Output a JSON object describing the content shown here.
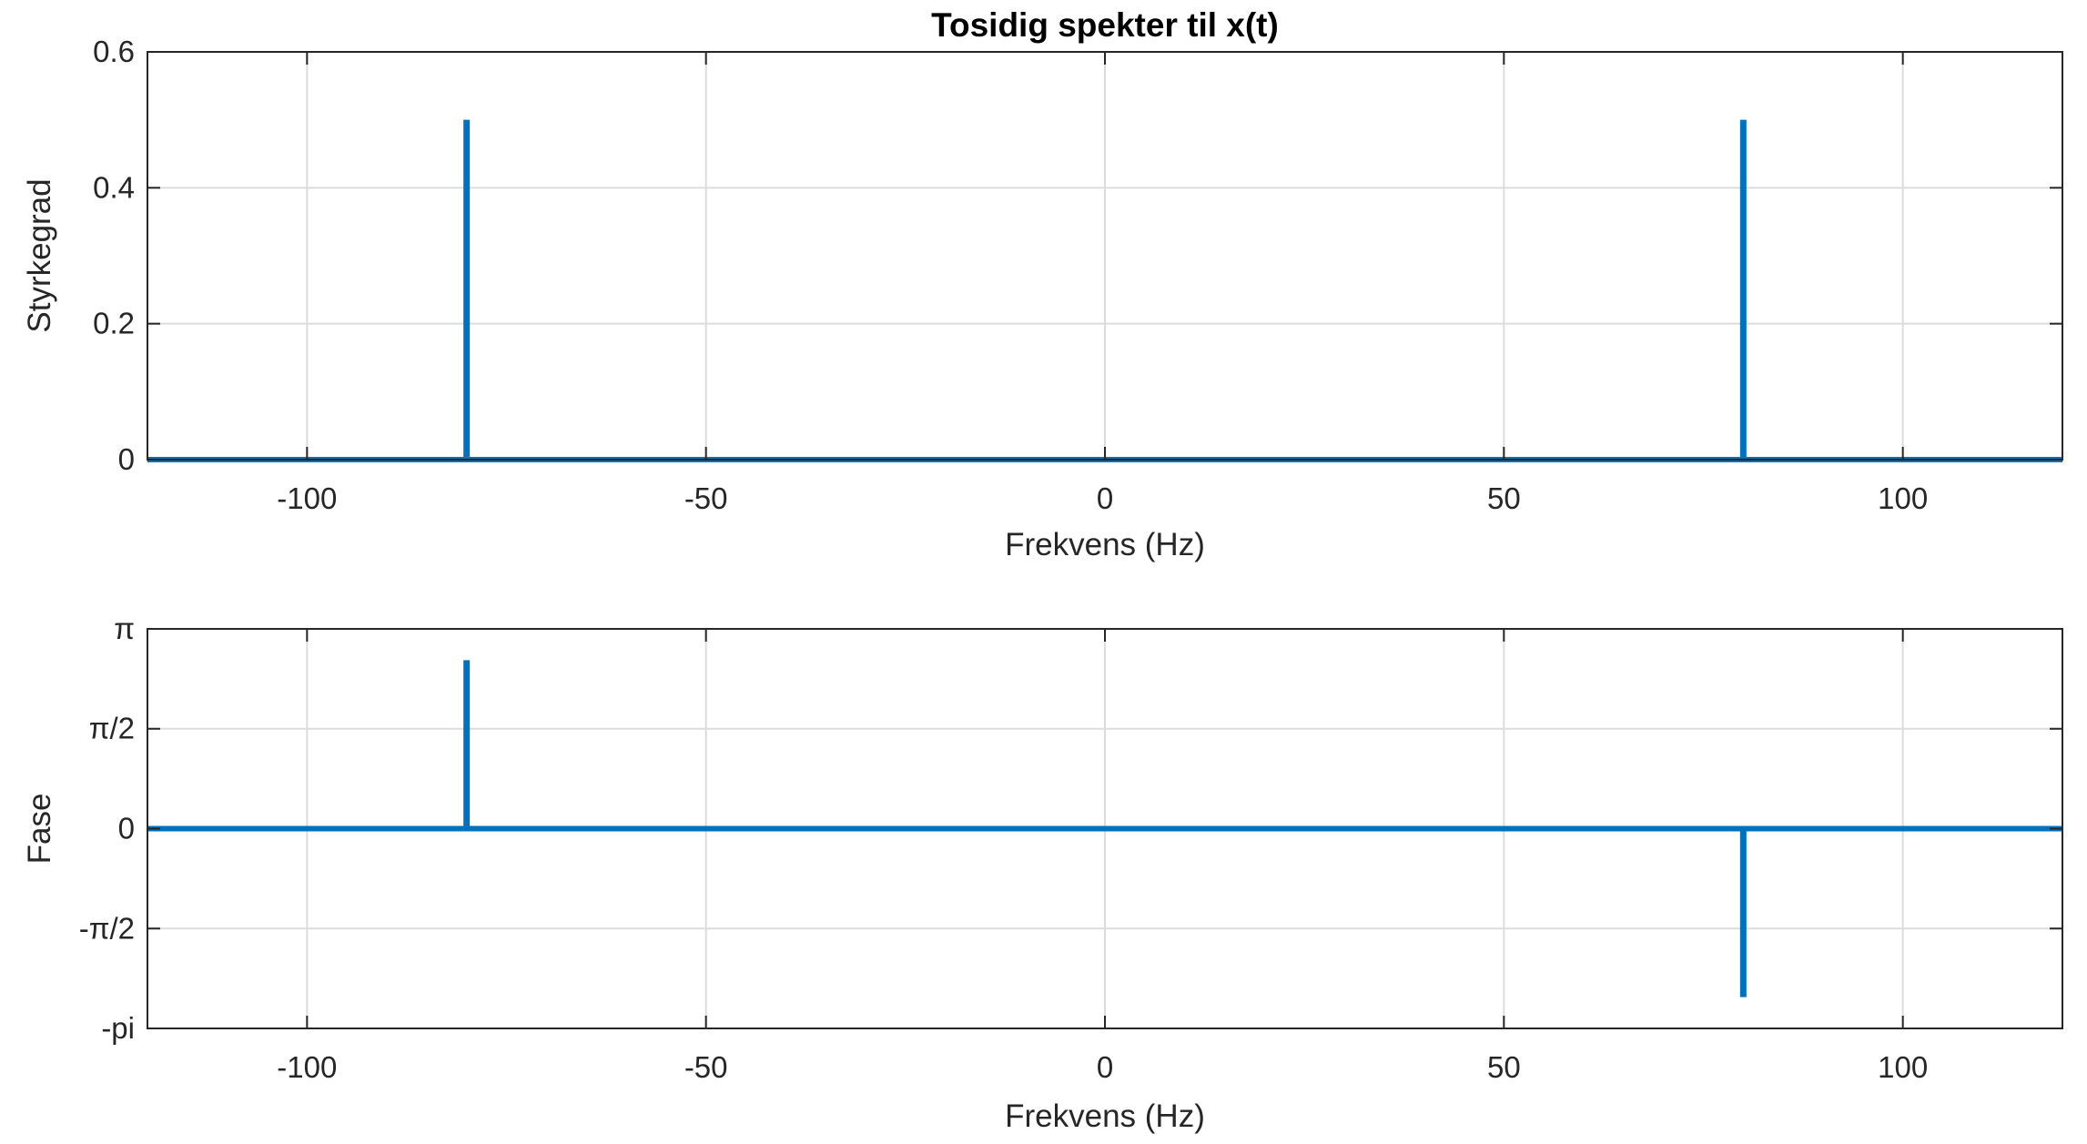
{
  "chart_data": [
    {
      "type": "stem",
      "title": "Tosidig spekter til x(t)",
      "xlabel": "Frekvens (Hz)",
      "ylabel": "Styrkegrad",
      "xlim": [
        -120,
        120
      ],
      "ylim": [
        0,
        0.6
      ],
      "xticks": [
        -100,
        -50,
        0,
        50,
        100
      ],
      "xtick_labels": [
        "-100",
        "-50",
        "0",
        "50",
        "100"
      ],
      "yticks": [
        0,
        0.2,
        0.4,
        0.6
      ],
      "ytick_labels": [
        "0",
        "0.2",
        "0.4",
        "0.6"
      ],
      "grid": true,
      "baseline": 0,
      "series": [
        {
          "x": [
            -80,
            80
          ],
          "y": [
            0.5,
            0.5
          ],
          "color": "#0072BD"
        }
      ]
    },
    {
      "type": "stem",
      "title": "",
      "xlabel": "Frekvens (Hz)",
      "ylabel": "Fase",
      "xlim": [
        -120,
        120
      ],
      "ylim": [
        -3.14159,
        3.14159
      ],
      "xticks": [
        -100,
        -50,
        0,
        50,
        100
      ],
      "xtick_labels": [
        "-100",
        "-50",
        "0",
        "50",
        "100"
      ],
      "yticks": [
        -3.14159,
        -1.5708,
        0,
        1.5708,
        3.14159
      ],
      "ytick_labels": [
        "-pi",
        "-π/2",
        "0",
        "π/2",
        "π"
      ],
      "grid": true,
      "baseline": 0,
      "series": [
        {
          "x": [
            -80,
            80
          ],
          "y": [
            2.65,
            -2.65
          ],
          "color": "#0072BD"
        }
      ]
    }
  ]
}
